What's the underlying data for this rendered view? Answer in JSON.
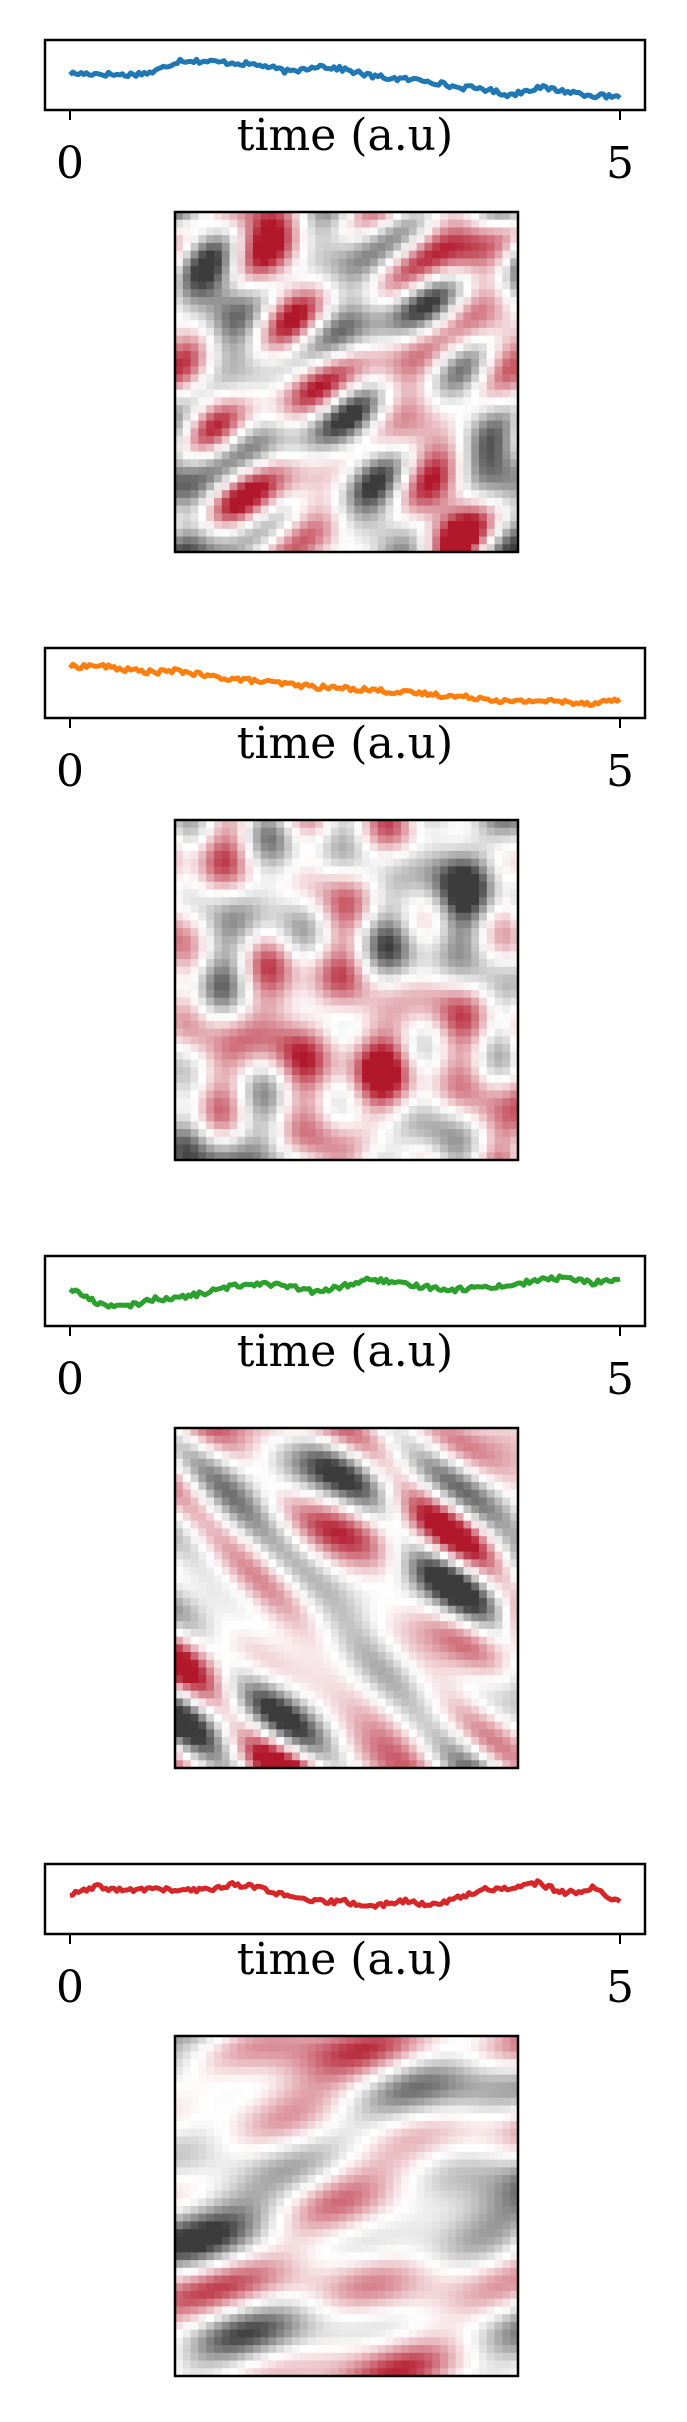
{
  "chart_data": [
    {
      "type": "line",
      "xlabel": "time (a.u)",
      "xlim": [
        0,
        5
      ],
      "xticks": [
        0,
        5
      ],
      "ylim": [
        -1,
        1
      ],
      "color": "#1f77b4",
      "x": [
        0.0,
        0.25,
        0.5,
        0.75,
        1.0,
        1.25,
        1.5,
        1.75,
        2.0,
        2.25,
        2.5,
        2.75,
        3.0,
        3.25,
        3.5,
        3.75,
        4.0,
        4.25,
        4.5,
        4.75,
        5.0
      ],
      "y": [
        0.05,
        0.05,
        0.0,
        0.1,
        0.55,
        0.5,
        0.45,
        0.35,
        0.1,
        0.35,
        0.2,
        -0.05,
        -0.15,
        -0.2,
        -0.45,
        -0.5,
        -0.75,
        -0.45,
        -0.6,
        -0.75,
        -0.85
      ],
      "heatmap": {
        "colormap": "RdGy_r"
      }
    },
    {
      "type": "line",
      "xlabel": "time (a.u)",
      "xlim": [
        0,
        5
      ],
      "xticks": [
        0,
        5
      ],
      "ylim": [
        -1,
        1
      ],
      "color": "#ff7f0e",
      "x": [
        0.0,
        0.25,
        0.5,
        0.75,
        1.0,
        1.25,
        1.5,
        1.75,
        2.0,
        2.25,
        2.5,
        2.75,
        3.0,
        3.25,
        3.5,
        3.75,
        4.0,
        4.25,
        4.5,
        4.75,
        5.0
      ],
      "y": [
        0.6,
        0.65,
        0.5,
        0.4,
        0.45,
        0.25,
        0.15,
        0.05,
        -0.05,
        -0.15,
        -0.2,
        -0.25,
        -0.35,
        -0.4,
        -0.5,
        -0.55,
        -0.7,
        -0.65,
        -0.7,
        -0.75,
        -0.6
      ],
      "heatmap": {
        "colormap": "RdGy_r"
      }
    },
    {
      "type": "line",
      "xlabel": "time (a.u)",
      "xlim": [
        0,
        5
      ],
      "xticks": [
        0,
        5
      ],
      "ylim": [
        -1,
        1
      ],
      "color": "#2ca02c",
      "x": [
        0.0,
        0.25,
        0.5,
        0.75,
        1.0,
        1.25,
        1.5,
        1.75,
        2.0,
        2.25,
        2.5,
        2.75,
        3.0,
        3.25,
        3.5,
        3.75,
        4.0,
        4.25,
        4.5,
        4.75,
        5.0
      ],
      "y": [
        0.1,
        -0.45,
        -0.6,
        -0.3,
        -0.25,
        -0.05,
        0.2,
        0.3,
        0.15,
        -0.05,
        0.2,
        0.45,
        0.25,
        0.15,
        0.05,
        0.15,
        0.2,
        0.4,
        0.5,
        0.3,
        0.45
      ],
      "heatmap": {
        "colormap": "RdGy_r"
      }
    },
    {
      "type": "line",
      "xlabel": "time (a.u)",
      "xlim": [
        0,
        5
      ],
      "xticks": [
        0,
        5
      ],
      "ylim": [
        -1,
        1
      ],
      "color": "#d62728",
      "x": [
        0.0,
        0.25,
        0.5,
        0.75,
        1.0,
        1.25,
        1.5,
        1.75,
        2.0,
        2.25,
        2.5,
        2.75,
        3.0,
        3.25,
        3.5,
        3.75,
        4.0,
        4.25,
        4.5,
        4.75,
        5.0
      ],
      "y": [
        0.15,
        0.45,
        0.3,
        0.4,
        0.3,
        0.35,
        0.55,
        0.4,
        0.05,
        -0.1,
        -0.1,
        -0.3,
        -0.05,
        -0.25,
        0.0,
        0.35,
        0.4,
        0.6,
        0.2,
        0.4,
        -0.1
      ],
      "heatmap": {
        "colormap": "RdGy_r"
      }
    }
  ]
}
